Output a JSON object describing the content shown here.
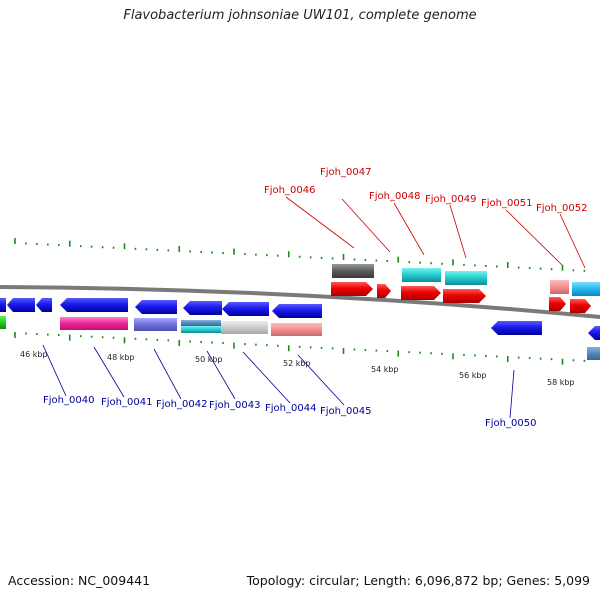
{
  "title": "Flavobacterium johnsoniae UW101, complete genome",
  "footer": {
    "accession": "Accession: NC_009441",
    "topology": "Topology: circular; Length: 6,096,872 bp; Genes: 5,099"
  },
  "colors": {
    "forward_label": "#cc0000",
    "reverse_label": "#000099",
    "backbone": "#7a7a7a",
    "tick": "#1a8a1a"
  },
  "kbp_labels": [
    "46 kbp",
    "48 kbp",
    "50 kbp",
    "52 kbp",
    "54 kbp",
    "56 kbp",
    "58 kbp"
  ],
  "forward_genes": [
    "Fjoh_0046",
    "Fjoh_0047",
    "Fjoh_0048",
    "Fjoh_0049",
    "Fjoh_0051",
    "Fjoh_0052"
  ],
  "reverse_genes": [
    "Fjoh_0040",
    "Fjoh_0041",
    "Fjoh_0042",
    "Fjoh_0043",
    "Fjoh_0044",
    "Fjoh_0045",
    "Fjoh_0050"
  ]
}
